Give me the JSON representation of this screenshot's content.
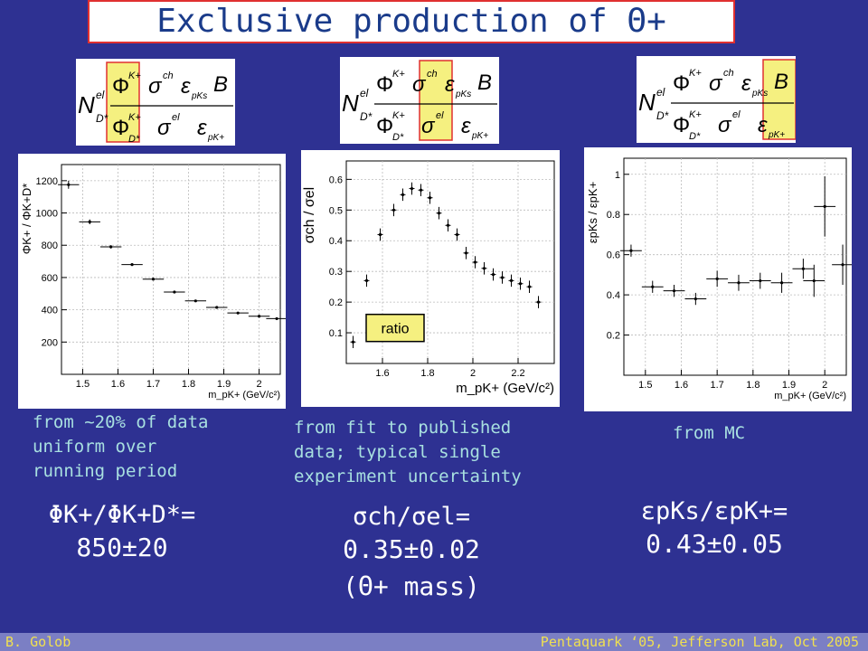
{
  "title": "Exclusive production of Θ+",
  "formula": {
    "N": "N",
    "N_sup": "el",
    "N_sub": "D*",
    "num_phi": "Φ",
    "num_phi_sup": "K+",
    "num_sigma": "σ",
    "num_sigma_sup": "ch",
    "num_eps": "ε",
    "num_eps_sub": "pKs",
    "B": "B",
    "den_phi": "Φ",
    "den_phi_sup": "K+",
    "den_phi_sub": "D*",
    "den_sigma": "σ",
    "den_sigma_sup": "el",
    "den_eps": "ε",
    "den_eps_sub": "pK+"
  },
  "captions": {
    "left": "from ~20% of data\nuniform over\nrunning period",
    "middle": "from fit to published\ndata; typical single\nexperiment uncertainty",
    "right": "from MC"
  },
  "results": {
    "left_eq": "ΦK+/ΦK+D*=",
    "left_val": "850±20",
    "middle_eq": "σch/σel=",
    "middle_val": "0.35±0.02",
    "middle_note": "(Θ+ mass)",
    "right_eq": "εpKs/εpK+=",
    "right_val": "0.43±0.05"
  },
  "footer": {
    "author": "B. Golob",
    "event": "Pentaquark ‘05, Jefferson Lab, Oct 2005"
  },
  "chart_data": [
    {
      "type": "scatter",
      "xlabel": "m_pK+ (GeV/c²)",
      "ylabel": "ΦK+ / ΦK+D*",
      "xlim": [
        1.44,
        2.06
      ],
      "ylim": [
        0,
        1300
      ],
      "xticks": [
        "1.5",
        "1.6",
        "1.7",
        "1.8",
        "1.9",
        "2"
      ],
      "yticks": [
        "200",
        "400",
        "600",
        "800",
        "1000",
        "1200"
      ],
      "grid": true,
      "series": [
        {
          "x": [
            1.46,
            1.52,
            1.58,
            1.64,
            1.7,
            1.76,
            1.82,
            1.88,
            1.94,
            2.0,
            2.05
          ],
          "y": [
            1175,
            945,
            790,
            680,
            590,
            510,
            455,
            415,
            380,
            360,
            345
          ],
          "yerr": [
            25,
            15,
            10,
            8,
            7,
            6,
            5,
            5,
            5,
            5,
            5
          ],
          "xerr": 0.03
        }
      ]
    },
    {
      "type": "scatter",
      "xlabel": "m_pK+ (GeV/c²)",
      "ylabel": "σch / σel",
      "xlim": [
        1.44,
        2.36
      ],
      "ylim": [
        0,
        0.66
      ],
      "xticks": [
        "1.6",
        "1.8",
        "2",
        "2.2"
      ],
      "yticks": [
        "0.1",
        "0.2",
        "0.3",
        "0.4",
        "0.5",
        "0.6"
      ],
      "grid": true,
      "legend": "ratio",
      "series": [
        {
          "x": [
            1.47,
            1.53,
            1.59,
            1.65,
            1.69,
            1.73,
            1.77,
            1.81,
            1.85,
            1.89,
            1.93,
            1.97,
            2.01,
            2.05,
            2.09,
            2.13,
            2.17,
            2.21,
            2.25,
            2.29
          ],
          "y": [
            0.07,
            0.27,
            0.42,
            0.5,
            0.55,
            0.57,
            0.565,
            0.54,
            0.49,
            0.45,
            0.42,
            0.36,
            0.33,
            0.31,
            0.29,
            0.28,
            0.27,
            0.26,
            0.25,
            0.2
          ],
          "yerr": [
            0.02,
            0.02,
            0.02,
            0.02,
            0.02,
            0.02,
            0.02,
            0.02,
            0.02,
            0.02,
            0.02,
            0.02,
            0.02,
            0.02,
            0.02,
            0.02,
            0.02,
            0.02,
            0.02,
            0.02
          ]
        }
      ]
    },
    {
      "type": "scatter",
      "xlabel": "m_pK+ (GeV/c²)",
      "ylabel": "εpKs / εpK+",
      "xlim": [
        1.44,
        2.06
      ],
      "ylim": [
        0,
        1.08
      ],
      "xticks": [
        "1.5",
        "1.6",
        "1.7",
        "1.8",
        "1.9",
        "2"
      ],
      "yticks": [
        "0.2",
        "0.4",
        "0.6",
        "0.8",
        "1"
      ],
      "grid": true,
      "series": [
        {
          "x": [
            1.46,
            1.52,
            1.58,
            1.64,
            1.7,
            1.76,
            1.82,
            1.88,
            1.94,
            1.97,
            2.0,
            2.05
          ],
          "y": [
            0.62,
            0.44,
            0.42,
            0.38,
            0.48,
            0.46,
            0.47,
            0.46,
            0.53,
            0.47,
            0.84,
            0.55
          ],
          "yerr": [
            0.03,
            0.03,
            0.03,
            0.03,
            0.04,
            0.04,
            0.04,
            0.05,
            0.05,
            0.08,
            0.15,
            0.1
          ],
          "xerr": 0.03
        }
      ]
    }
  ]
}
